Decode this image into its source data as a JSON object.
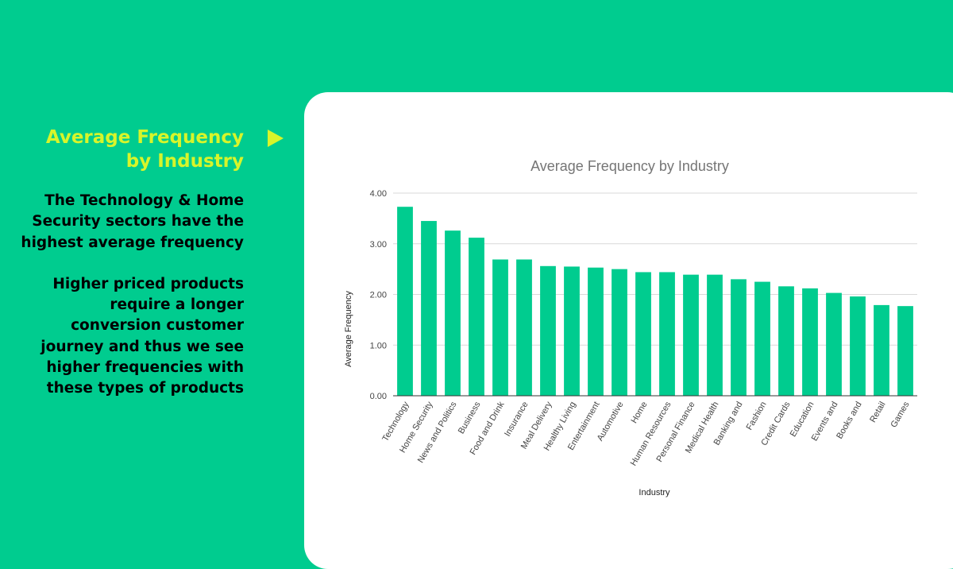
{
  "slide": {
    "title": "Average Frequency by Industry",
    "paragraphs": [
      "The Technology & Home Security sectors have the highest average frequency",
      "Higher priced products require a longer conversion customer journey and thus we see higher frequencies with these types of products"
    ]
  },
  "colors": {
    "background": "#00cc8f",
    "accent": "#d7f52a",
    "bar": "#00cc8f"
  },
  "chart_data": {
    "type": "bar",
    "title": "Average Frequency by Industry",
    "xlabel": "Industry",
    "ylabel": "Average Frequency",
    "ylim": [
      0,
      4
    ],
    "yticks": [
      "0.00",
      "1.00",
      "2.00",
      "3.00",
      "4.00"
    ],
    "grid": true,
    "categories": [
      "Technology",
      "Home Security",
      "News and Politics",
      "Business",
      "Food and Drink",
      "Insurance",
      "Meal Delivery",
      "Healthy Living",
      "Entertainment",
      "Automotive",
      "Home",
      "Human Resources",
      "Personal Finance",
      "Medical Health",
      "Banking and",
      "Fashion",
      "Credit Cards",
      "Education",
      "Events and",
      "Books and",
      "Retail",
      "Games"
    ],
    "values": [
      3.73,
      3.45,
      3.26,
      3.12,
      2.69,
      2.69,
      2.56,
      2.55,
      2.53,
      2.5,
      2.44,
      2.44,
      2.39,
      2.39,
      2.3,
      2.25,
      2.16,
      2.12,
      2.03,
      1.96,
      1.79,
      1.77
    ]
  }
}
